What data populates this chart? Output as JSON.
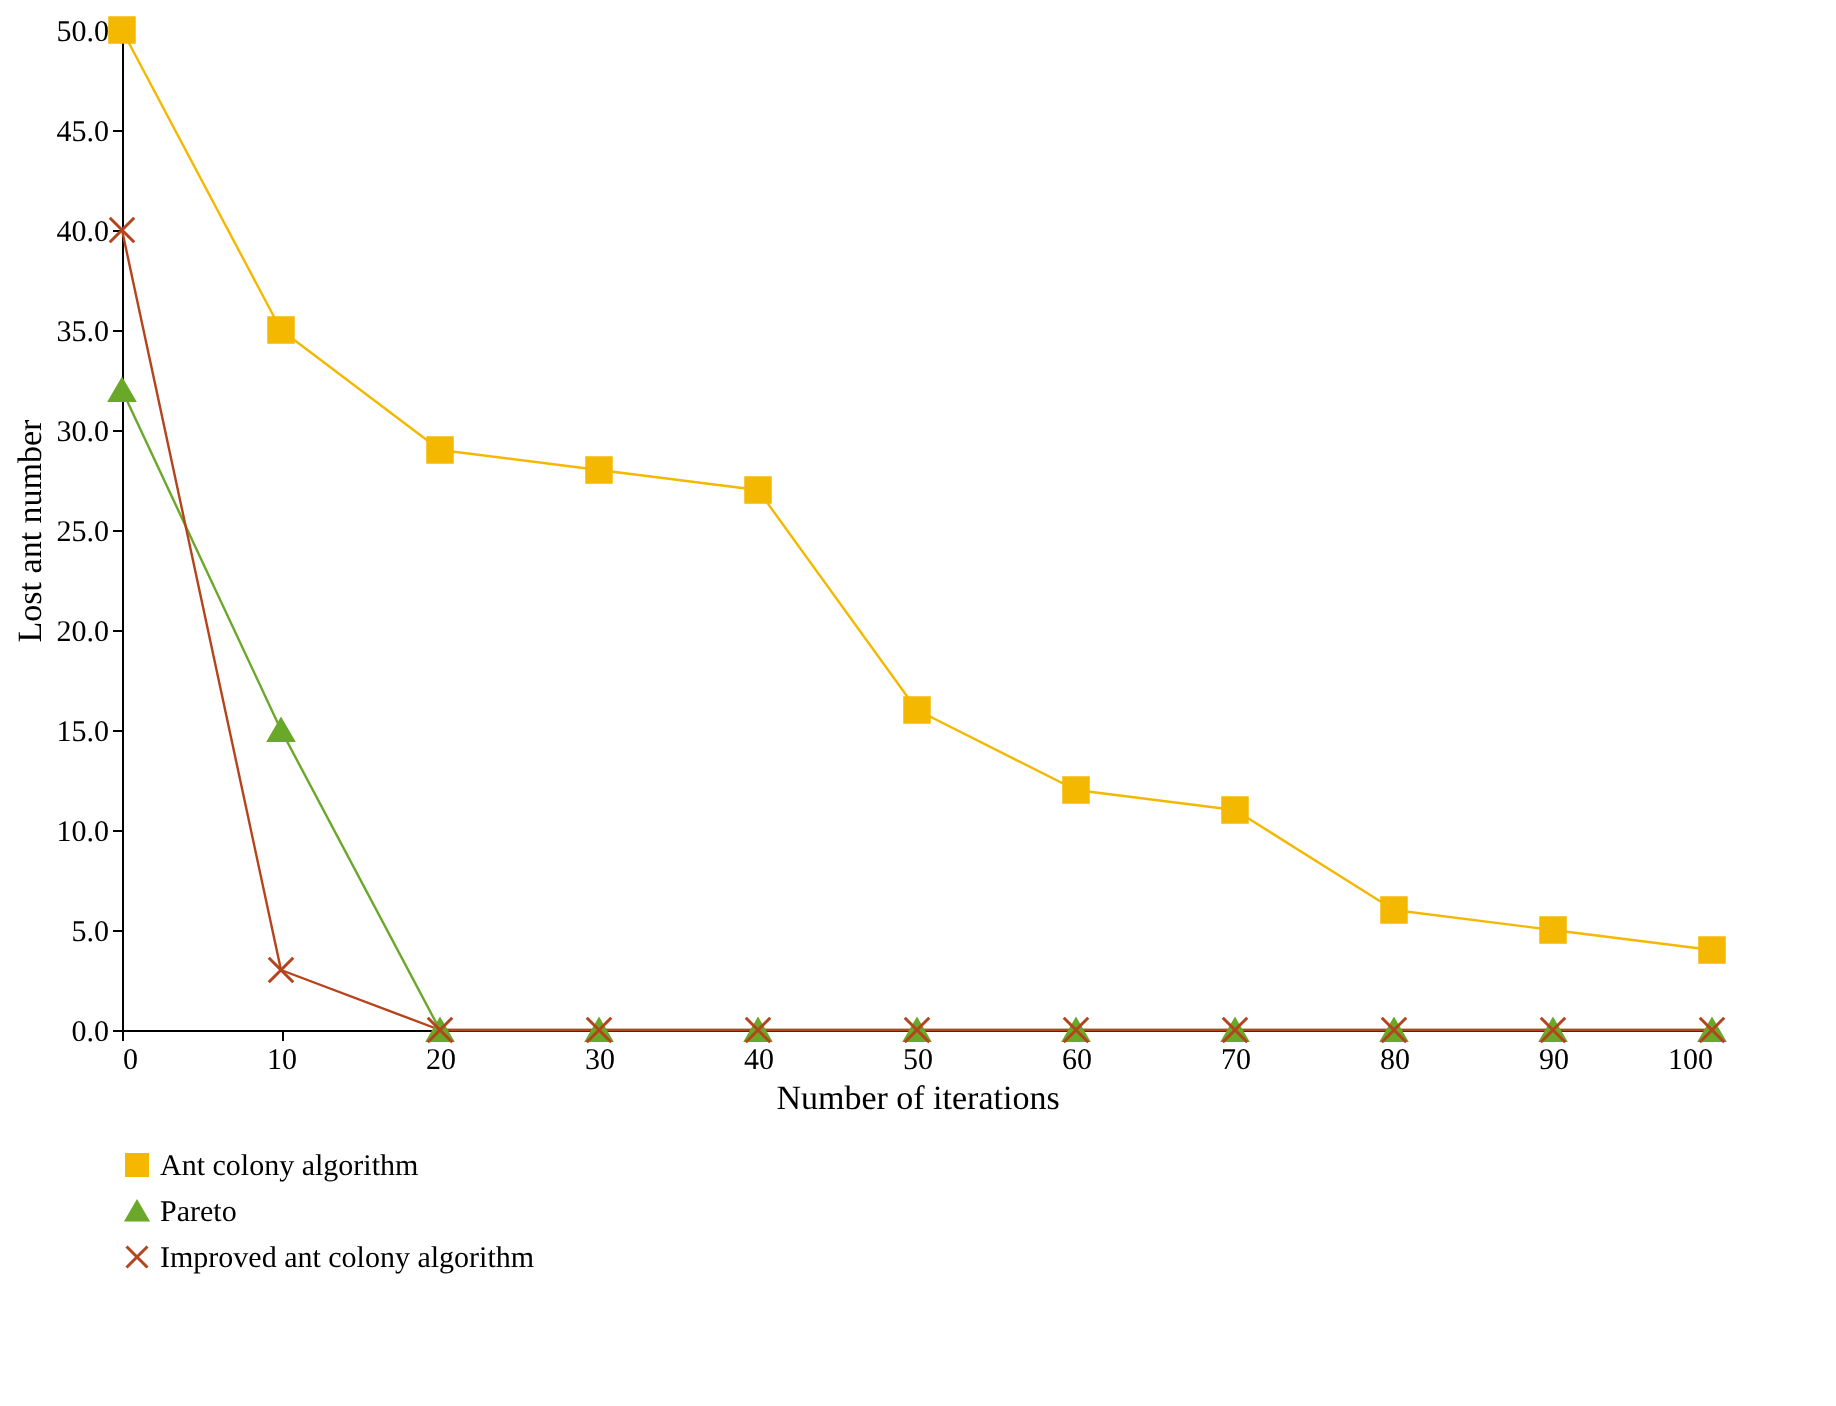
{
  "chart_data": {
    "type": "line",
    "xlabel": "Number of iterations",
    "ylabel": "Lost ant number",
    "x": [
      0,
      10,
      20,
      30,
      40,
      50,
      60,
      70,
      80,
      90,
      100
    ],
    "xlim": [
      0,
      100
    ],
    "xticks": [
      0,
      10,
      20,
      30,
      40,
      50,
      60,
      70,
      80,
      90,
      100
    ],
    "ylim": [
      0,
      50
    ],
    "yticks": [
      {
        "value": 0,
        "label": "0.0"
      },
      {
        "value": 5,
        "label": "5.0"
      },
      {
        "value": 10,
        "label": "10.0"
      },
      {
        "value": 15,
        "label": "15.0"
      },
      {
        "value": 20,
        "label": "20.0"
      },
      {
        "value": 25,
        "label": "25.0"
      },
      {
        "value": 30,
        "label": "30.0"
      },
      {
        "value": 35,
        "label": "35.0"
      },
      {
        "value": 40,
        "label": "40.0"
      },
      {
        "value": 45,
        "label": "45.0"
      },
      {
        "value": 50,
        "label": "50.0"
      }
    ],
    "grid": false,
    "legend": "bottom left",
    "line_style": "solid",
    "series": [
      {
        "name": "Ant colony algorithm",
        "color": "#f5b800",
        "marker": "square",
        "values": [
          50,
          35,
          29,
          28,
          27,
          16,
          12,
          11,
          6,
          5,
          4
        ]
      },
      {
        "name": "Pareto",
        "color": "#6aa829",
        "marker": "triangle",
        "values": [
          32,
          15,
          0,
          0,
          0,
          0,
          0,
          0,
          0,
          0,
          0
        ]
      },
      {
        "name": "Improved ant colony algorithm",
        "color": "#b5431c",
        "marker": "cross",
        "values": [
          40,
          3,
          0,
          0,
          0,
          0,
          0,
          0,
          0,
          0,
          0
        ]
      }
    ]
  }
}
